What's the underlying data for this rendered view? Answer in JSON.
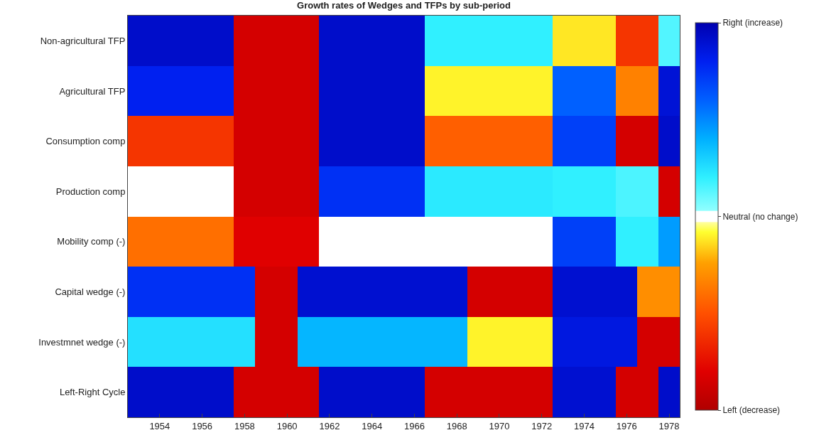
{
  "chart_data": {
    "type": "heatmap",
    "title": "Growth rates of Wedges and TFPs by sub-period",
    "x": [
      1953,
      1954,
      1955,
      1956,
      1957,
      1958,
      1959,
      1960,
      1961,
      1962,
      1963,
      1964,
      1965,
      1966,
      1967,
      1968,
      1969,
      1970,
      1971,
      1972,
      1973,
      1974,
      1975,
      1976,
      1977,
      1978
    ],
    "y_categories": [
      "Non-agricultural TFP",
      "Agricultural TFP",
      "Consumption comp",
      "Production comp",
      "Mobility comp (-)",
      "Capital wedge (-)",
      "Investmnet wedge (-)",
      "Left-Right Cycle"
    ],
    "cells": [
      [
        0.92,
        0.92,
        0.92,
        0.92,
        0.92,
        -0.85,
        -0.85,
        -0.85,
        -0.85,
        0.92,
        0.92,
        0.92,
        0.92,
        0.92,
        0.2,
        0.2,
        0.2,
        0.2,
        0.2,
        0.2,
        -0.12,
        -0.12,
        -0.12,
        -0.6,
        -0.6,
        0.14
      ],
      [
        0.8,
        0.8,
        0.8,
        0.8,
        0.8,
        -0.85,
        -0.85,
        -0.85,
        -0.85,
        0.92,
        0.92,
        0.92,
        0.92,
        0.92,
        -0.1,
        -0.1,
        -0.1,
        -0.1,
        -0.1,
        -0.1,
        0.6,
        0.6,
        0.6,
        -0.34,
        -0.34,
        0.88
      ],
      [
        -0.6,
        -0.6,
        -0.6,
        -0.6,
        -0.6,
        -0.85,
        -0.85,
        -0.85,
        -0.85,
        0.92,
        0.92,
        0.92,
        0.92,
        0.92,
        -0.45,
        -0.45,
        -0.45,
        -0.45,
        -0.45,
        -0.45,
        0.7,
        0.7,
        0.7,
        -0.85,
        -0.85,
        0.92
      ],
      [
        0,
        0,
        0,
        0,
        0,
        -0.85,
        -0.85,
        -0.85,
        -0.85,
        0.75,
        0.75,
        0.75,
        0.75,
        0.75,
        0.22,
        0.22,
        0.22,
        0.22,
        0.22,
        0.22,
        0.2,
        0.2,
        0.2,
        0.15,
        0.15,
        -0.85
      ],
      [
        -0.4,
        -0.4,
        -0.4,
        -0.4,
        -0.4,
        -0.8,
        -0.8,
        -0.8,
        -0.8,
        0,
        0,
        0,
        0,
        0,
        0,
        0,
        0,
        0,
        0,
        0,
        0.7,
        0.7,
        0.7,
        0.2,
        0.2,
        0.45
      ],
      [
        0.75,
        0.75,
        0.75,
        0.75,
        0.75,
        0.75,
        -0.85,
        -0.85,
        0.9,
        0.9,
        0.9,
        0.9,
        0.9,
        0.9,
        0.9,
        0.9,
        -0.85,
        -0.85,
        -0.85,
        -0.85,
        0.9,
        0.9,
        0.9,
        0.9,
        -0.3,
        -0.3
      ],
      [
        0.25,
        0.25,
        0.25,
        0.25,
        0.25,
        0.25,
        -0.85,
        -0.85,
        0.38,
        0.38,
        0.38,
        0.38,
        0.38,
        0.38,
        0.38,
        0.38,
        -0.1,
        -0.1,
        -0.1,
        -0.1,
        0.85,
        0.85,
        0.85,
        0.85,
        -0.85,
        -0.85
      ],
      [
        0.92,
        0.92,
        0.92,
        0.92,
        0.92,
        -0.85,
        -0.85,
        -0.85,
        -0.85,
        0.92,
        0.92,
        0.92,
        0.92,
        0.92,
        -0.85,
        -0.85,
        -0.85,
        -0.85,
        -0.85,
        -0.85,
        0.9,
        0.9,
        0.9,
        -0.85,
        -0.85,
        0.92
      ]
    ],
    "xlim": [
      1952.5,
      1978.5
    ],
    "xticks": [
      1954,
      1956,
      1958,
      1960,
      1962,
      1964,
      1966,
      1968,
      1970,
      1972,
      1974,
      1976,
      1978
    ],
    "clim": [
      -1,
      1
    ],
    "cticks": [
      {
        "value": 1,
        "label": "Right (increase)"
      },
      {
        "value": 0,
        "label": "Neutral (no change)"
      },
      {
        "value": -1,
        "label": "Left (decrease)"
      }
    ]
  }
}
